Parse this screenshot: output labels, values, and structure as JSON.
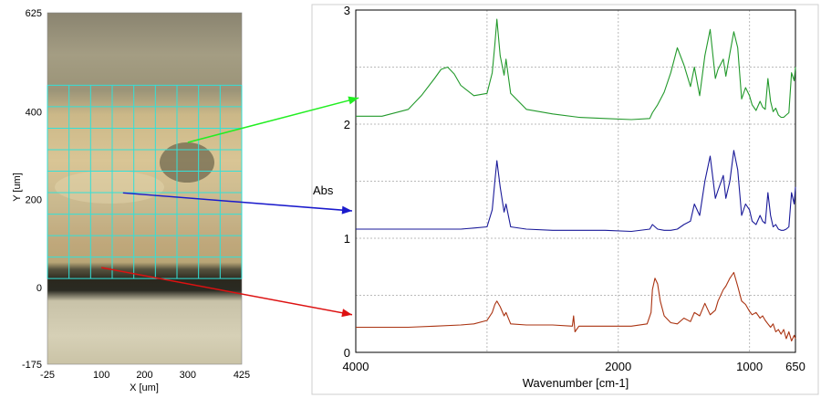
{
  "chart_data": [
    {
      "type": "image",
      "name": "microscope-map",
      "xlabel": "X [um]",
      "ylabel": "Y [um]",
      "xlim": [
        -25,
        425
      ],
      "ylim": [
        -175,
        625
      ],
      "xticks": [
        "-25",
        "100",
        "200",
        "300",
        "425"
      ],
      "xtick_values": [
        -25,
        100,
        200,
        300,
        425
      ],
      "yticks": [
        "625",
        "400",
        "200",
        "0",
        "-175"
      ],
      "ytick_values": [
        625,
        400,
        200,
        0,
        -175
      ],
      "grid": {
        "x_from": -25,
        "x_to": 425,
        "y_from": 20,
        "y_to": 460,
        "columns": 9,
        "rows": 9,
        "color": "#33e0d8"
      },
      "arrows": [
        {
          "from": [
            300,
            330
          ],
          "to_wavenumber": 3950,
          "to_abs": 2.23,
          "color": "#22ee22"
        },
        {
          "from": [
            150,
            215
          ],
          "to_wavenumber": 4000,
          "to_abs": 1.24,
          "color": "#1a1acc"
        },
        {
          "from": [
            100,
            45
          ],
          "to_wavenumber": 4000,
          "to_abs": 0.33,
          "color": "#dd1111"
        }
      ]
    },
    {
      "type": "line",
      "name": "ir-spectra",
      "xlabel": "Wavenumber [cm-1]",
      "ylabel": "Abs",
      "xlim": [
        4000,
        650
      ],
      "ylim": [
        0,
        3
      ],
      "x_reversed": true,
      "xticks": [
        "4000",
        "2000",
        "1000",
        "650"
      ],
      "xtick_values": [
        4000,
        2000,
        1000,
        650
      ],
      "yticks": [
        "3",
        "2",
        "1",
        "0"
      ],
      "ytick_values": [
        3,
        2,
        1,
        0
      ],
      "grid": true,
      "series": [
        {
          "color": "#22992b",
          "x": [
            4000,
            3800,
            3600,
            3500,
            3400,
            3350,
            3300,
            3250,
            3200,
            3100,
            3000,
            2960,
            2940,
            2925,
            2900,
            2870,
            2855,
            2820,
            2700,
            2500,
            2300,
            2100,
            1900,
            1760,
            1740,
            1700,
            1650,
            1600,
            1550,
            1500,
            1450,
            1420,
            1380,
            1340,
            1300,
            1260,
            1240,
            1200,
            1180,
            1150,
            1120,
            1090,
            1060,
            1030,
            1000,
            980,
            950,
            920,
            900,
            880,
            860,
            840,
            820,
            800,
            780,
            760,
            740,
            720,
            700,
            680,
            660,
            650
          ],
          "y": [
            2.07,
            2.07,
            2.13,
            2.25,
            2.4,
            2.48,
            2.5,
            2.44,
            2.34,
            2.25,
            2.27,
            2.45,
            2.7,
            2.92,
            2.6,
            2.43,
            2.57,
            2.27,
            2.13,
            2.09,
            2.06,
            2.05,
            2.04,
            2.05,
            2.1,
            2.17,
            2.28,
            2.45,
            2.67,
            2.52,
            2.33,
            2.5,
            2.25,
            2.6,
            2.83,
            2.4,
            2.48,
            2.57,
            2.42,
            2.62,
            2.81,
            2.67,
            2.22,
            2.32,
            2.25,
            2.17,
            2.12,
            2.2,
            2.15,
            2.13,
            2.4,
            2.2,
            2.11,
            2.14,
            2.08,
            2.06,
            2.06,
            2.08,
            2.1,
            2.45,
            2.38,
            2.5
          ]
        },
        {
          "color": "#1a1a99",
          "x": [
            4000,
            3800,
            3600,
            3400,
            3200,
            3100,
            3000,
            2960,
            2940,
            2925,
            2900,
            2870,
            2855,
            2820,
            2700,
            2500,
            2300,
            2100,
            1900,
            1760,
            1740,
            1700,
            1650,
            1600,
            1550,
            1500,
            1450,
            1420,
            1380,
            1340,
            1300,
            1260,
            1240,
            1200,
            1180,
            1150,
            1120,
            1090,
            1060,
            1030,
            1000,
            980,
            950,
            920,
            900,
            880,
            860,
            840,
            820,
            800,
            780,
            760,
            740,
            720,
            700,
            680,
            660,
            650
          ],
          "y": [
            1.08,
            1.08,
            1.08,
            1.08,
            1.08,
            1.09,
            1.1,
            1.25,
            1.5,
            1.68,
            1.45,
            1.23,
            1.3,
            1.1,
            1.08,
            1.07,
            1.07,
            1.07,
            1.06,
            1.08,
            1.12,
            1.08,
            1.07,
            1.07,
            1.08,
            1.12,
            1.15,
            1.3,
            1.2,
            1.5,
            1.72,
            1.35,
            1.42,
            1.55,
            1.35,
            1.5,
            1.77,
            1.6,
            1.2,
            1.3,
            1.25,
            1.15,
            1.12,
            1.2,
            1.15,
            1.13,
            1.4,
            1.2,
            1.1,
            1.12,
            1.08,
            1.07,
            1.07,
            1.08,
            1.1,
            1.4,
            1.3,
            1.45
          ]
        },
        {
          "color": "#aa3311",
          "x": [
            4000,
            3800,
            3600,
            3400,
            3200,
            3100,
            3000,
            2960,
            2940,
            2925,
            2900,
            2870,
            2855,
            2820,
            2700,
            2500,
            2350,
            2340,
            2330,
            2300,
            2100,
            1900,
            1780,
            1750,
            1740,
            1720,
            1700,
            1680,
            1650,
            1600,
            1550,
            1500,
            1450,
            1420,
            1380,
            1340,
            1300,
            1260,
            1240,
            1200,
            1180,
            1150,
            1120,
            1090,
            1060,
            1030,
            1000,
            980,
            950,
            920,
            900,
            880,
            860,
            840,
            820,
            800,
            780,
            760,
            740,
            720,
            700,
            680,
            660,
            650
          ],
          "y": [
            0.22,
            0.22,
            0.22,
            0.23,
            0.24,
            0.25,
            0.28,
            0.35,
            0.42,
            0.45,
            0.4,
            0.32,
            0.35,
            0.25,
            0.24,
            0.24,
            0.23,
            0.32,
            0.18,
            0.23,
            0.23,
            0.23,
            0.25,
            0.35,
            0.55,
            0.65,
            0.6,
            0.45,
            0.32,
            0.26,
            0.25,
            0.3,
            0.27,
            0.35,
            0.32,
            0.43,
            0.33,
            0.37,
            0.45,
            0.55,
            0.58,
            0.65,
            0.7,
            0.58,
            0.45,
            0.42,
            0.36,
            0.33,
            0.35,
            0.3,
            0.32,
            0.28,
            0.25,
            0.22,
            0.25,
            0.18,
            0.2,
            0.16,
            0.2,
            0.12,
            0.18,
            0.1,
            0.15,
            0.12
          ]
        }
      ]
    }
  ]
}
